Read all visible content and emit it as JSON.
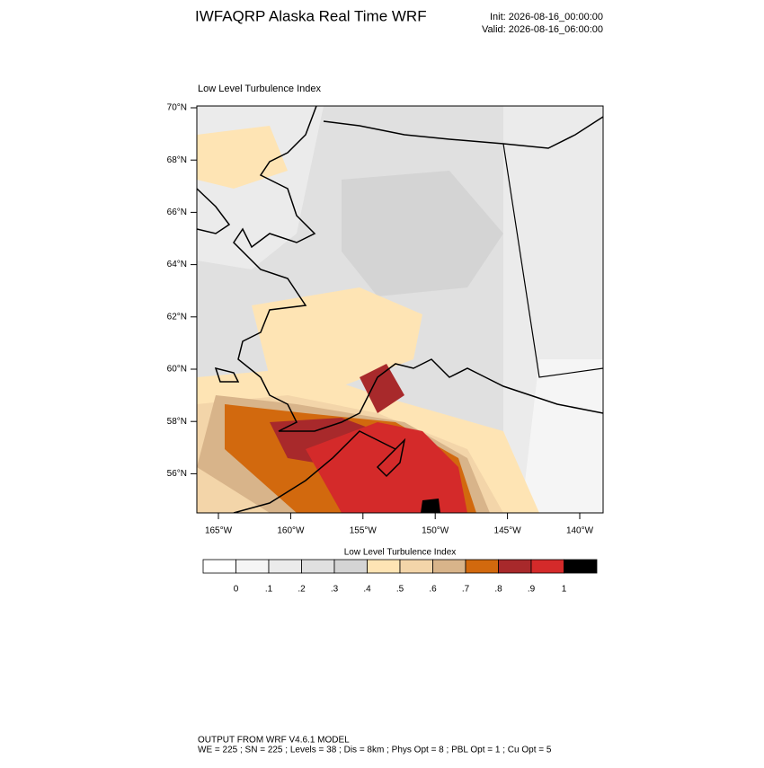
{
  "header": {
    "title": "IWFAQRP Alaska Real Time WRF",
    "init": "Init: 2026-08-16_00:00:00",
    "valid": "Valid: 2026-08-16_06:00:00"
  },
  "map": {
    "title": "Low Level Turbulence Index",
    "lat_ticks": [
      {
        "value": 70,
        "label": "70°N"
      },
      {
        "value": 68,
        "label": "68°N"
      },
      {
        "value": 66,
        "label": "66°N"
      },
      {
        "value": 64,
        "label": "64°N"
      },
      {
        "value": 62,
        "label": "62°N"
      },
      {
        "value": 60,
        "label": "60°N"
      },
      {
        "value": 58,
        "label": "58°N"
      },
      {
        "value": 56,
        "label": "56°N"
      }
    ],
    "lon_ticks": [
      {
        "value": -165,
        "label": "165°W"
      },
      {
        "value": -160,
        "label": "160°W"
      },
      {
        "value": -155,
        "label": "155°W"
      },
      {
        "value": -150,
        "label": "150°W"
      },
      {
        "value": -145,
        "label": "145°W"
      },
      {
        "value": -140,
        "label": "140°W"
      }
    ]
  },
  "colorbar": {
    "title": "Low Level Turbulence Index",
    "levels": [
      0,
      {
        "value": 0.1,
        "label": ".1"
      },
      {
        "value": 0.2,
        "label": ".2"
      },
      {
        "value": 0.3,
        "label": ".3"
      },
      {
        "value": 0.4,
        "label": ".4"
      },
      {
        "value": 0.5,
        "label": ".5"
      },
      {
        "value": 0.6,
        "label": ".6"
      },
      {
        "value": 0.7,
        "label": ".7"
      },
      {
        "value": 0.8,
        "label": ".8"
      },
      {
        "value": 0.9,
        "label": ".9"
      },
      1
    ],
    "colors": [
      "#ffffff",
      "#f5f5f5",
      "#ebebeb",
      "#e0e0e0",
      "#d4d4d4",
      "#fee4b4",
      "#f3d5a9",
      "#d8b48a",
      "#d2690e",
      "#a8292b",
      "#d42a2a",
      "#000000"
    ]
  },
  "footer": {
    "line1": "OUTPUT FROM WRF V4.6.1 MODEL",
    "line2": "WE = 225 ; SN = 225 ; Levels = 38 ; Dis = 8km ; Phys Opt = 8 ; PBL Opt = 1 ; Cu Opt = 5"
  }
}
